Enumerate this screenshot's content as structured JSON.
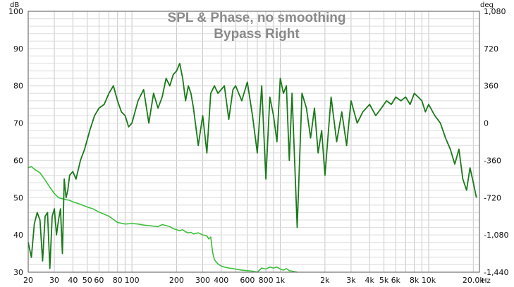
{
  "chart_data": {
    "type": "line",
    "title": "SPL & Phase, no smoothing",
    "subtitle": "Bypass Right",
    "left_unit": "dB",
    "right_unit": "deg",
    "x_unit": "Hz",
    "x_scale": "log",
    "xlim": [
      20,
      22000
    ],
    "ylim": [
      30,
      100
    ],
    "y2lim": [
      -1440,
      1080
    ],
    "grid": true,
    "x_ticks": [
      {
        "value": 20,
        "label": "20"
      },
      {
        "value": 30,
        "label": "30"
      },
      {
        "value": 40,
        "label": "40"
      },
      {
        "value": 50,
        "label": "50"
      },
      {
        "value": 60,
        "label": "60"
      },
      {
        "value": 80,
        "label": "80"
      },
      {
        "value": 100,
        "label": "100"
      },
      {
        "value": 200,
        "label": "200"
      },
      {
        "value": 300,
        "label": "300"
      },
      {
        "value": 400,
        "label": "400"
      },
      {
        "value": 600,
        "label": "600"
      },
      {
        "value": 800,
        "label": "800"
      },
      {
        "value": 1000,
        "label": "1k"
      },
      {
        "value": 2000,
        "label": "2k"
      },
      {
        "value": 3000,
        "label": "3k"
      },
      {
        "value": 4000,
        "label": "4k"
      },
      {
        "value": 5000,
        "label": "5k"
      },
      {
        "value": 6000,
        "label": "6k"
      },
      {
        "value": 8000,
        "label": "8k"
      },
      {
        "value": 10000,
        "label": "10k"
      },
      {
        "value": 20000,
        "label": "20.0k"
      }
    ],
    "y_ticks": [
      {
        "value": 30,
        "label": "30"
      },
      {
        "value": 40,
        "label": "40"
      },
      {
        "value": 50,
        "label": "50"
      },
      {
        "value": 60,
        "label": "60"
      },
      {
        "value": 70,
        "label": "70"
      },
      {
        "value": 80,
        "label": "80"
      },
      {
        "value": 90,
        "label": "90"
      },
      {
        "value": 100,
        "label": "100"
      }
    ],
    "y2_ticks": [
      {
        "value": 1080,
        "label": "1,080"
      },
      {
        "value": 720,
        "label": "720"
      },
      {
        "value": 360,
        "label": "360"
      },
      {
        "value": 0,
        "label": "0"
      },
      {
        "value": -360,
        "label": "-360"
      },
      {
        "value": -720,
        "label": "-720"
      },
      {
        "value": -1080,
        "label": "-1,080"
      },
      {
        "value": -1440,
        "label": "-1,440"
      }
    ],
    "series": [
      {
        "axis": "left",
        "color": "#1a7a1a",
        "x": [
          20,
          21,
          22,
          23,
          24,
          25,
          26,
          27,
          28,
          29,
          30,
          31,
          32,
          33,
          34,
          35,
          36,
          37,
          38,
          40,
          42,
          45,
          48,
          52,
          56,
          60,
          65,
          70,
          75,
          80,
          85,
          90,
          95,
          100,
          110,
          120,
          130,
          140,
          150,
          160,
          170,
          180,
          190,
          200,
          210,
          220,
          230,
          240,
          250,
          260,
          280,
          300,
          320,
          340,
          360,
          380,
          400,
          420,
          450,
          480,
          500,
          550,
          600,
          650,
          700,
          750,
          800,
          850,
          900,
          950,
          1000,
          1050,
          1100,
          1150,
          1200,
          1300,
          1400,
          1500,
          1600,
          1700,
          1800,
          1900,
          2000,
          2200,
          2400,
          2600,
          2800,
          3000,
          3300,
          3600,
          4000,
          4400,
          4800,
          5200,
          5600,
          6000,
          6500,
          7000,
          7500,
          8000,
          8500,
          9000,
          9500,
          10000,
          11000,
          12000,
          13000,
          14000,
          15000,
          16000,
          17000,
          18000,
          19000,
          20000,
          21000
        ],
        "y": [
          38,
          34,
          43,
          46,
          44,
          33,
          45,
          46,
          31,
          45,
          47,
          40,
          44,
          47,
          35,
          55,
          50,
          52,
          56,
          57,
          55,
          60,
          63,
          68,
          72,
          74,
          75,
          78,
          80,
          76,
          73,
          72,
          69,
          70,
          76,
          79,
          70,
          78,
          74,
          77,
          82,
          80,
          83,
          84,
          86,
          82,
          76,
          80,
          78,
          74,
          64,
          72,
          62,
          78,
          80,
          78,
          79,
          80,
          71,
          79,
          80,
          76,
          81,
          72,
          62,
          80,
          55,
          77,
          72,
          65,
          82,
          78,
          80,
          60,
          78,
          42,
          78,
          74,
          66,
          74,
          62,
          68,
          56,
          77,
          65,
          73,
          64,
          76,
          70,
          73,
          75,
          72,
          74,
          76,
          75,
          77,
          76,
          77,
          75,
          78,
          77,
          76,
          73,
          75,
          72,
          70,
          66,
          63,
          59,
          63,
          55,
          52,
          58,
          54,
          50
        ]
      },
      {
        "axis": "right",
        "color": "#3cbf3c",
        "x": [
          20,
          21,
          22,
          24,
          26,
          28,
          30,
          32,
          34,
          36,
          38,
          40,
          45,
          50,
          55,
          60,
          65,
          70,
          75,
          80,
          90,
          100,
          110,
          120,
          130,
          140,
          150,
          160,
          170,
          180,
          190,
          200,
          210,
          220,
          230,
          240,
          250,
          260,
          280,
          300,
          320,
          330,
          340,
          350,
          360,
          380,
          400,
          420,
          450,
          500,
          550,
          600,
          650,
          700,
          750,
          800,
          850,
          900,
          950,
          1000,
          1050,
          1100,
          1150,
          1200,
          1250,
          1300
        ],
        "y": [
          -430,
          -420,
          -445,
          -480,
          -550,
          -620,
          -680,
          -720,
          -730,
          -740,
          -745,
          -760,
          -785,
          -810,
          -830,
          -860,
          -880,
          -900,
          -930,
          -960,
          -975,
          -970,
          -975,
          -985,
          -990,
          -995,
          -1000,
          -980,
          -990,
          -1000,
          -1020,
          -1030,
          -1040,
          -1030,
          -1050,
          -1060,
          -1055,
          -1070,
          -1060,
          -1080,
          -1090,
          -1120,
          -1100,
          -1250,
          -1320,
          -1360,
          -1380,
          -1390,
          -1400,
          -1410,
          -1420,
          -1425,
          -1430,
          -1440,
          -1400,
          -1410,
          -1390,
          -1400,
          -1390,
          -1410,
          -1420,
          -1405,
          -1425,
          -1430,
          -1435,
          -1440
        ]
      }
    ]
  }
}
